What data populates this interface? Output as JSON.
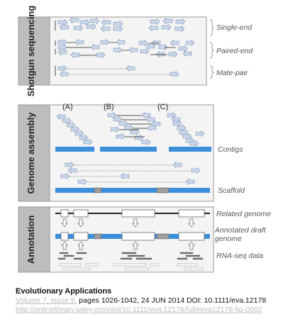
{
  "sections": {
    "shotgun": "Shotgun sequencing",
    "assembly": "Genome assembly",
    "annotation": "Annotation"
  },
  "labels": {
    "single_end": "Single-end",
    "paired_end": "Paired-end",
    "mate_pair": "Mate-pair",
    "contigs": "Contigs",
    "scaffold": "Scaffold",
    "related_genome": "Related genome",
    "annotated_draft_genome": "Annotated draft genome",
    "rna_seq_data": "RNA-seq data"
  },
  "panels": [
    "(A)",
    "(B)",
    "(C)"
  ],
  "caption": {
    "journal": "Evolutionary Applications",
    "volume_issue": "Volume 7, Issue 9,",
    "pages_text": " pages 1026-1042, 24 JUN 2014 DOI: 10.1111/eva.12178",
    "url": "http://onlinelibrary.wiley.com/doi/10.1111/eva.12178/full#eva12178-fig-0002"
  },
  "colors": {
    "blue": "#3d8fdc",
    "read_fill": "#c9d7ea",
    "read_stroke": "#7e93b3",
    "box_bg": "#f4f4f4",
    "box_stroke": "#999999"
  }
}
